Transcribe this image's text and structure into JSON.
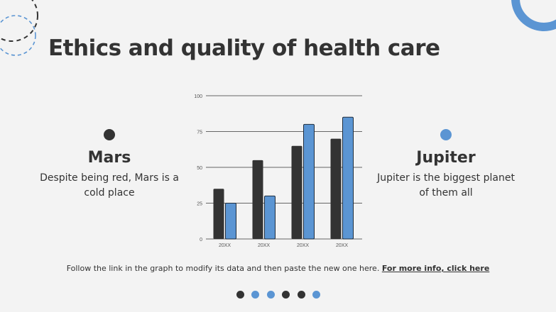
{
  "title": "Ethics and quality of health care",
  "left": {
    "heading": "Mars",
    "text": "Despite being red, Mars is a cold place",
    "dot_color": "#333333"
  },
  "right": {
    "heading": "Jupiter",
    "text": "Jupiter is the biggest planet of them all",
    "dot_color": "#5b95d3"
  },
  "footer": {
    "text": "Follow the link in the graph to modify its data and then paste the new one here.",
    "link": "For more info, click here"
  },
  "pagination": [
    "#333333",
    "#5b95d3",
    "#5b95d3",
    "#333333",
    "#333333",
    "#5b95d3"
  ],
  "colors": {
    "dark": "#333333",
    "blue": "#5b95d3",
    "background": "#f3f3f3"
  },
  "chart_data": {
    "type": "bar",
    "categories": [
      "20XX",
      "20XX",
      "20XX",
      "20XX"
    ],
    "series": [
      {
        "values": [
          35,
          55,
          65,
          70
        ],
        "color": "#333333"
      },
      {
        "values": [
          25,
          30,
          80,
          85
        ],
        "color": "#5b95d3"
      }
    ],
    "yticks": [
      0,
      25,
      50,
      75,
      100
    ],
    "ylim": [
      0,
      100
    ],
    "grid": true,
    "xlabel": "",
    "ylabel": "",
    "title": ""
  }
}
